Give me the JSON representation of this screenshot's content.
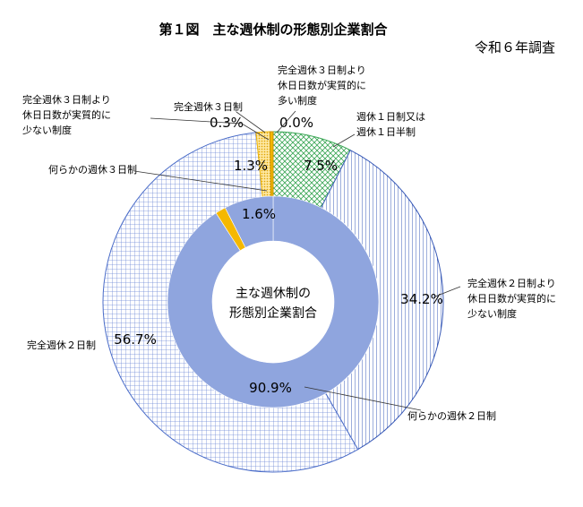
{
  "title": "第１図　主な週休制の形態別企業割合",
  "survey_note": "令和６年調査",
  "chart_data": [
    {
      "type": "pie",
      "ring": "outer",
      "slices": [
        {
          "label": "完全週休３日制より休日日数が実質的に多い制度",
          "value": 0.0,
          "display": "0.0%",
          "pattern": "dots",
          "color": "#f2b705"
        },
        {
          "label": "週休１日制又は週休１日半制",
          "value": 7.5,
          "display": "7.5%",
          "pattern": "cross",
          "color": "#3aa655"
        },
        {
          "label": "完全週休２日制より休日日数が実質的に少ない制度",
          "value": 34.2,
          "display": "34.2%",
          "pattern": "vlines",
          "color": "#3b5cb8"
        },
        {
          "label": "完全週休２日制",
          "value": 56.7,
          "display": "56.7%",
          "pattern": "grid",
          "color": "#4a6cc8"
        },
        {
          "label": "完全週休３日制より休日日数が実質的に少ない制度",
          "value": 1.3,
          "display": "1.3%",
          "pattern": "dots",
          "color": "#f2b705"
        },
        {
          "label": "完全週休３日制",
          "value": 0.3,
          "display": "0.3%",
          "pattern": "solid",
          "color": "#f5b800"
        }
      ]
    },
    {
      "type": "pie",
      "ring": "inner",
      "slices": [
        {
          "label": "何らかの週休２日制",
          "value": 90.9,
          "display": "90.9%",
          "color": "#8fa5de"
        },
        {
          "label": "何らかの週休３日制",
          "value": 1.6,
          "display": "1.6%",
          "color": "#f5b800"
        },
        {
          "label": "週休１日制又は週休１日半制",
          "value": 7.5,
          "display": "",
          "color": "#8fa5de"
        }
      ]
    }
  ],
  "center_label": {
    "line1": "主な週休制の",
    "line2": "形態別企業割合"
  },
  "labels": {
    "more3": [
      "完全週休３日制より",
      "休日日数が実質的に",
      "多い制度"
    ],
    "week1": [
      "週休１日制又は",
      "週休１日半制"
    ],
    "less2": [
      "完全週休２日制より",
      "休日日数が実質的に",
      "少ない制度"
    ],
    "full2": "完全週休２日制",
    "some2": "何らかの週休２日制",
    "some3": "何らかの週休３日制",
    "less3": [
      "完全週休３日制より",
      "休日日数が実質的に",
      "少ない制度"
    ],
    "full3": "完全週休３日制"
  }
}
